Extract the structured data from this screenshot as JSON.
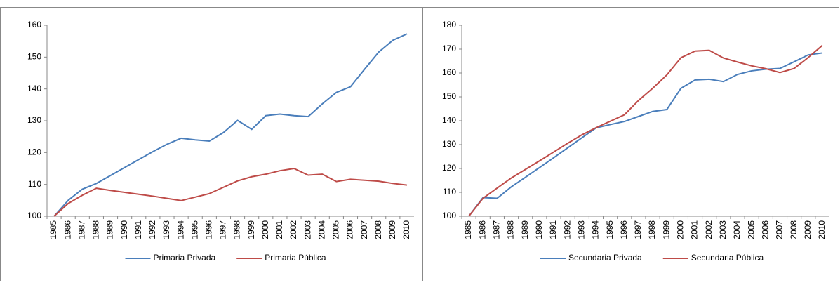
{
  "chart_data": [
    {
      "type": "line",
      "categories": [
        "1985",
        "1986",
        "1987",
        "1988",
        "1989",
        "1990",
        "1991",
        "1992",
        "1993",
        "1994",
        "1995",
        "1996",
        "1997",
        "1998",
        "1999",
        "2000",
        "2001",
        "2002",
        "2003",
        "2004",
        "2005",
        "2006",
        "2007",
        "2008",
        "2009",
        "2010"
      ],
      "series": [
        {
          "name": "Primaria Privada",
          "color": "#4a7ebb",
          "values": [
            100,
            105,
            108.5,
            110.3,
            112.8,
            115.3,
            117.8,
            120.3,
            122.6,
            124.5,
            124,
            123.6,
            126.3,
            130.1,
            127.3,
            131.6,
            132.1,
            131.6,
            131.3,
            135.3,
            138.9,
            140.7,
            146.2,
            151.6,
            155.3,
            157.3
          ]
        },
        {
          "name": "Primaria Pública",
          "color": "#be4b48",
          "values": [
            100,
            104,
            106.6,
            108.8,
            108.1,
            107.5,
            106.9,
            106.3,
            105.6,
            104.9,
            106,
            107.1,
            109.1,
            111.1,
            112.4,
            113.2,
            114.3,
            115,
            112.9,
            113.2,
            110.9,
            111.6,
            111.3,
            111,
            110.3,
            109.8
          ]
        }
      ],
      "ylim": [
        100,
        160
      ],
      "yticks": [
        100,
        110,
        120,
        130,
        140,
        150,
        160
      ],
      "legend": "bottom"
    },
    {
      "type": "line",
      "categories": [
        "1985",
        "1986",
        "1987",
        "1988",
        "1989",
        "1990",
        "1991",
        "1992",
        "1993",
        "1994",
        "1995",
        "1996",
        "1997",
        "1998",
        "1999",
        "2000",
        "2001",
        "2002",
        "2003",
        "2004",
        "2005",
        "2006",
        "2007",
        "2008",
        "2009",
        "2010"
      ],
      "series": [
        {
          "name": "Secundaria Privada",
          "color": "#4a7ebb",
          "values": [
            100,
            107.8,
            107.5,
            112.3,
            116.3,
            120.4,
            124.5,
            128.7,
            132.9,
            137,
            138.4,
            139.7,
            141.8,
            143.9,
            144.7,
            153.6,
            157.1,
            157.4,
            156.4,
            159.4,
            160.9,
            161.6,
            161.9,
            164.7,
            167.6,
            168.4
          ]
        },
        {
          "name": "Secundaria Pública",
          "color": "#be4b48",
          "values": [
            100,
            107.5,
            111.8,
            116,
            119.6,
            123.2,
            126.9,
            130.6,
            134.1,
            137.1,
            139.8,
            142.5,
            148.5,
            153.6,
            159.2,
            166.4,
            169.2,
            169.5,
            166.3,
            164.6,
            163,
            161.8,
            160.2,
            161.9,
            166.5,
            171.6
          ]
        }
      ],
      "ylim": [
        100,
        180
      ],
      "yticks": [
        100,
        110,
        120,
        130,
        140,
        150,
        160,
        170,
        180
      ],
      "legend": "bottom"
    }
  ]
}
